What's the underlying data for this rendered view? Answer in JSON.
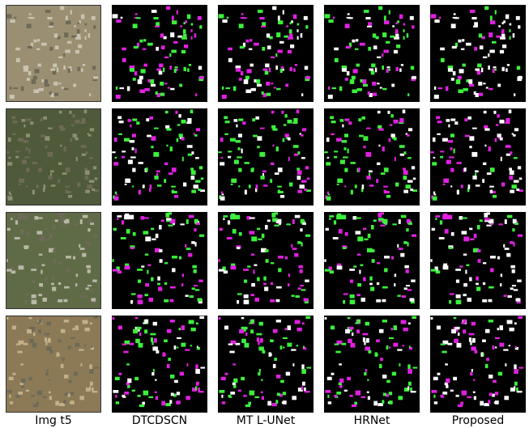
{
  "columns": [
    "Img t5",
    "DTCDSCN",
    "MT L-UNet",
    "HRNet",
    "Proposed"
  ]
}
